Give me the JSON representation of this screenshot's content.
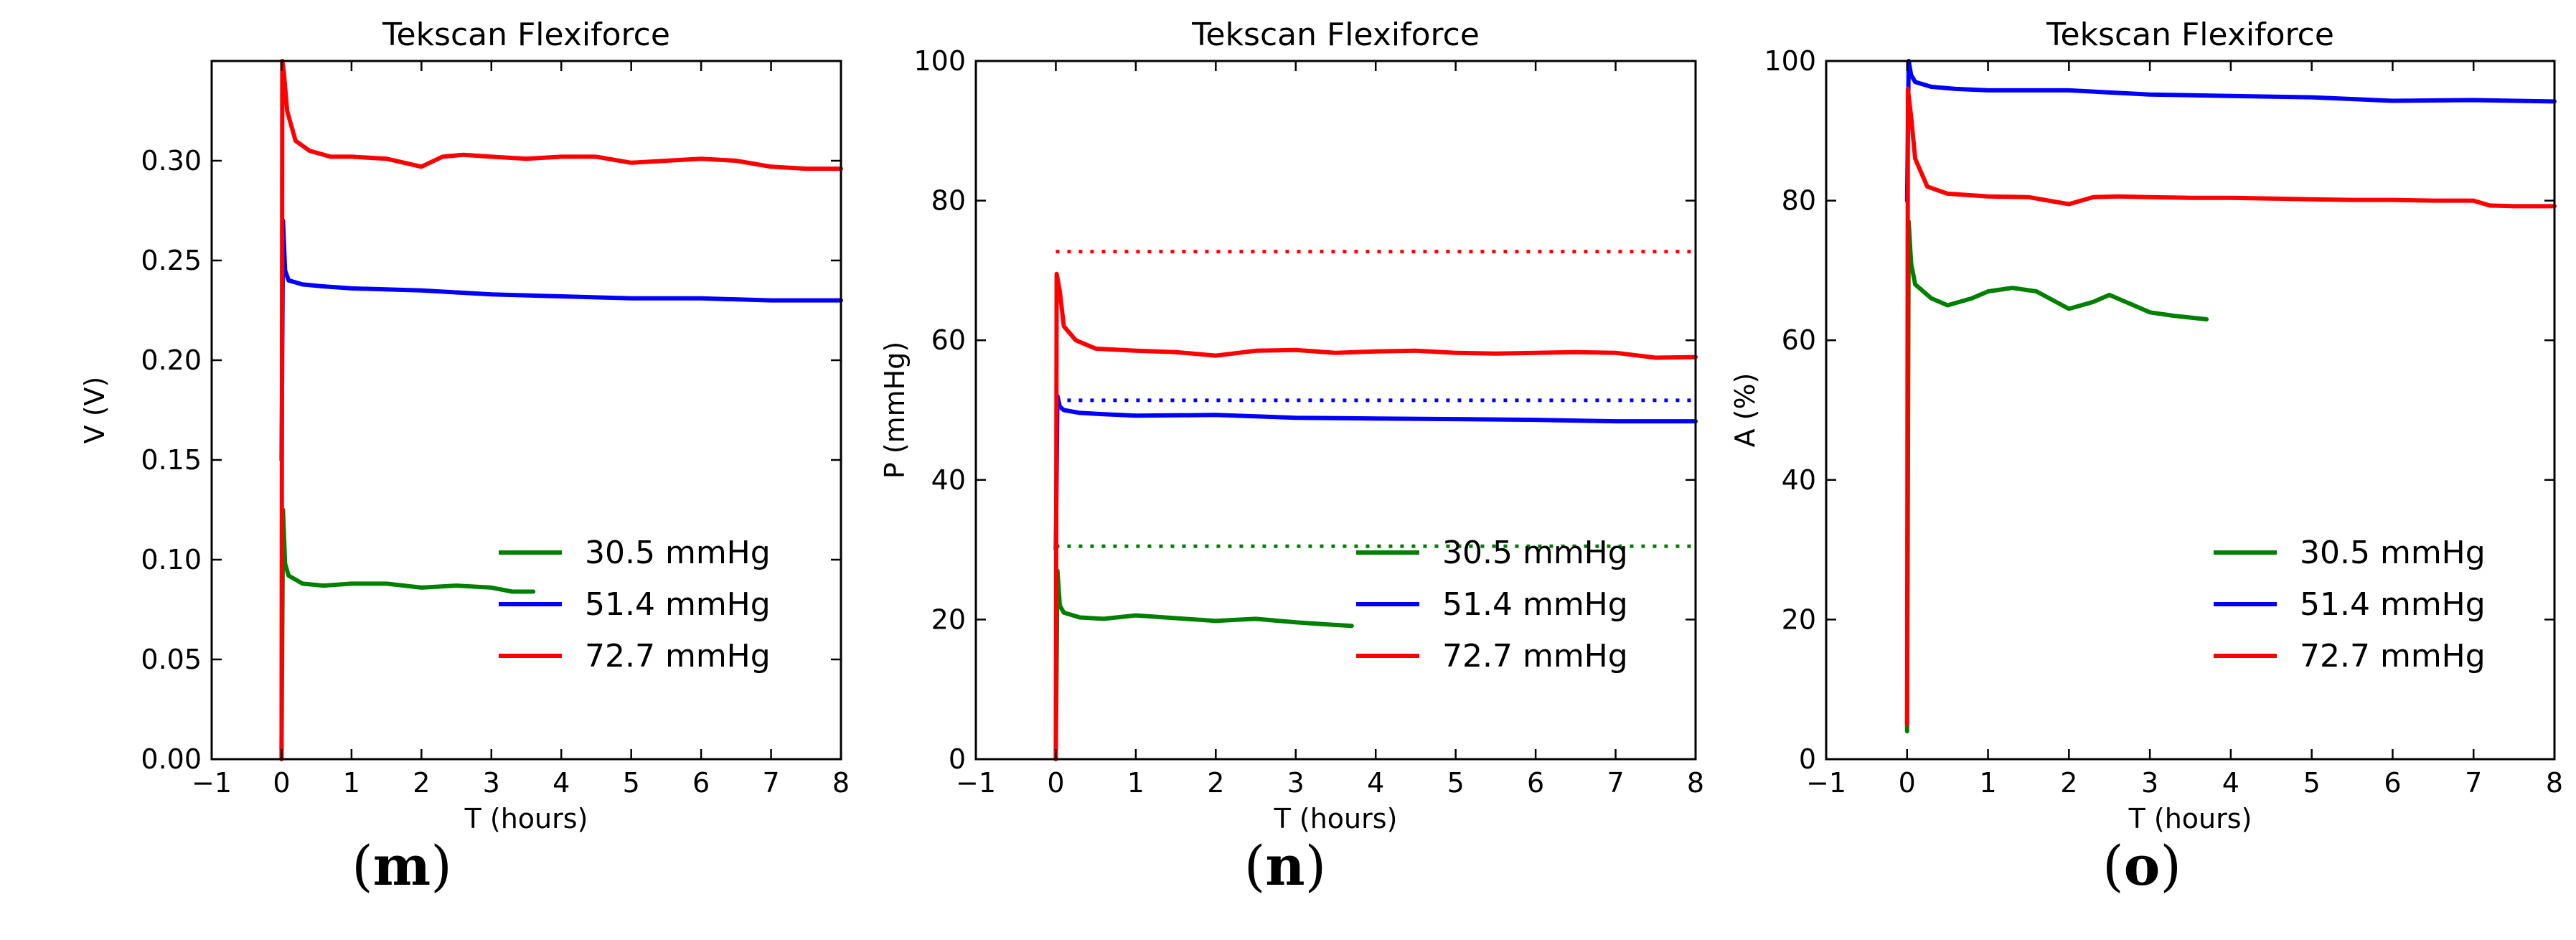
{
  "chart_data": [
    {
      "type": "line",
      "panel": "m",
      "caption": {
        "open": "(",
        "letter": "m",
        "close": ")"
      },
      "title": "Tekscan Flexiforce",
      "xlabel": "T (hours)",
      "ylabel": "V (V)",
      "xlim": [
        -1,
        8
      ],
      "ylim": [
        0,
        0.35
      ],
      "xticks": [
        -1,
        0,
        1,
        2,
        3,
        4,
        5,
        6,
        7,
        8
      ],
      "xtick_labels": [
        "−1",
        "0",
        "1",
        "2",
        "3",
        "4",
        "5",
        "6",
        "7",
        "8"
      ],
      "yticks": [
        0.0,
        0.05,
        0.1,
        0.15,
        0.2,
        0.25,
        0.3
      ],
      "ytick_labels": [
        "0.00",
        "0.05",
        "0.10",
        "0.15",
        "0.20",
        "0.25",
        "0.30"
      ],
      "legend_position": "lower-right",
      "series": [
        {
          "name": "30.5 mmHg",
          "color": "#008000",
          "x": [
            0,
            0.02,
            0.05,
            0.1,
            0.3,
            0.6,
            1.0,
            1.5,
            2.0,
            2.5,
            3.0,
            3.3,
            3.6
          ],
          "y": [
            0.005,
            0.125,
            0.098,
            0.092,
            0.088,
            0.087,
            0.088,
            0.088,
            0.086,
            0.087,
            0.086,
            0.084,
            0.084
          ]
        },
        {
          "name": "51.4 mmHg",
          "color": "#0000ff",
          "x": [
            0,
            0.02,
            0.05,
            0.1,
            0.3,
            0.6,
            1.0,
            2.0,
            3.0,
            4.0,
            5.0,
            6.0,
            7.0,
            8.0
          ],
          "y": [
            0.15,
            0.27,
            0.245,
            0.24,
            0.238,
            0.237,
            0.236,
            0.235,
            0.233,
            0.232,
            0.231,
            0.231,
            0.23,
            0.23
          ]
        },
        {
          "name": "72.7 mmHg",
          "color": "#ff0000",
          "x": [
            0,
            0.01,
            0.03,
            0.08,
            0.2,
            0.4,
            0.7,
            1.0,
            1.5,
            2.0,
            2.3,
            2.6,
            3.0,
            3.5,
            4.0,
            4.5,
            5.0,
            5.5,
            6.0,
            6.5,
            7.0,
            7.5,
            8.0
          ],
          "y": [
            0.0,
            0.35,
            0.345,
            0.325,
            0.31,
            0.305,
            0.302,
            0.302,
            0.301,
            0.297,
            0.302,
            0.303,
            0.302,
            0.301,
            0.302,
            0.302,
            0.299,
            0.3,
            0.301,
            0.3,
            0.297,
            0.296,
            0.296
          ]
        }
      ]
    },
    {
      "type": "line",
      "panel": "n",
      "caption": {
        "open": "(",
        "letter": "n",
        "close": ")"
      },
      "title": "Tekscan Flexiforce",
      "xlabel": "T (hours)",
      "ylabel": "P (mmHg)",
      "xlim": [
        -1,
        8
      ],
      "ylim": [
        0,
        100
      ],
      "xticks": [
        -1,
        0,
        1,
        2,
        3,
        4,
        5,
        6,
        7,
        8
      ],
      "xtick_labels": [
        "−1",
        "0",
        "1",
        "2",
        "3",
        "4",
        "5",
        "6",
        "7",
        "8"
      ],
      "yticks": [
        0,
        20,
        40,
        60,
        80,
        100
      ],
      "ytick_labels": [
        "0",
        "20",
        "40",
        "60",
        "80",
        "100"
      ],
      "legend_position": "lower-right",
      "reference_lines": [
        {
          "y": 30.5,
          "color": "#008000",
          "x_from": 0
        },
        {
          "y": 51.4,
          "color": "#0000ff",
          "x_from": 0
        },
        {
          "y": 72.7,
          "color": "#ff0000",
          "x_from": 0
        }
      ],
      "series": [
        {
          "name": "30.5 mmHg",
          "color": "#008000",
          "x": [
            0,
            0.02,
            0.05,
            0.1,
            0.3,
            0.6,
            1.0,
            1.5,
            2.0,
            2.5,
            3.0,
            3.4,
            3.7
          ],
          "y": [
            1,
            27,
            22,
            21,
            20.3,
            20.1,
            20.6,
            20.2,
            19.8,
            20.1,
            19.6,
            19.3,
            19.1
          ]
        },
        {
          "name": "51.4 mmHg",
          "color": "#0000ff",
          "x": [
            0,
            0.02,
            0.05,
            0.1,
            0.3,
            0.6,
            1.0,
            2.0,
            3.0,
            4.0,
            5.0,
            6.0,
            7.0,
            8.0
          ],
          "y": [
            30,
            52,
            50.5,
            50,
            49.6,
            49.4,
            49.2,
            49.3,
            48.9,
            48.8,
            48.7,
            48.6,
            48.4,
            48.4
          ]
        },
        {
          "name": "72.7 mmHg",
          "color": "#ff0000",
          "x": [
            0,
            0.01,
            0.05,
            0.1,
            0.25,
            0.5,
            1.0,
            1.5,
            2.0,
            2.5,
            3.0,
            3.5,
            4.0,
            4.5,
            5.0,
            5.5,
            6.0,
            6.5,
            7.0,
            7.5,
            8.0
          ],
          "y": [
            0,
            69.5,
            67,
            62,
            60,
            58.8,
            58.5,
            58.3,
            57.8,
            58.5,
            58.6,
            58.2,
            58.4,
            58.5,
            58.2,
            58.1,
            58.2,
            58.3,
            58.2,
            57.5,
            57.6
          ]
        }
      ]
    },
    {
      "type": "line",
      "panel": "o",
      "caption": {
        "open": "(",
        "letter": "o",
        "close": ")"
      },
      "title": "Tekscan Flexiforce",
      "xlabel": "T (hours)",
      "ylabel": "A (%)",
      "xlim": [
        -1,
        8
      ],
      "ylim": [
        0,
        100
      ],
      "xticks": [
        -1,
        0,
        1,
        2,
        3,
        4,
        5,
        6,
        7,
        8
      ],
      "xtick_labels": [
        "−1",
        "0",
        "1",
        "2",
        "3",
        "4",
        "5",
        "6",
        "7",
        "8"
      ],
      "yticks": [
        0,
        20,
        40,
        60,
        80,
        100
      ],
      "ytick_labels": [
        "0",
        "20",
        "40",
        "60",
        "80",
        "100"
      ],
      "legend_position": "lower-right",
      "series": [
        {
          "name": "30.5 mmHg",
          "color": "#008000",
          "x": [
            0,
            0.02,
            0.05,
            0.1,
            0.3,
            0.5,
            0.8,
            1.0,
            1.3,
            1.6,
            2.0,
            2.3,
            2.5,
            2.8,
            3.0,
            3.3,
            3.7
          ],
          "y": [
            4,
            77,
            71,
            68,
            66,
            65,
            66,
            67,
            67.5,
            67,
            64.5,
            65.5,
            66.5,
            65,
            64,
            63.5,
            63
          ]
        },
        {
          "name": "51.4 mmHg",
          "color": "#0000ff",
          "x": [
            0,
            0.02,
            0.05,
            0.1,
            0.3,
            0.6,
            1.0,
            2.0,
            3.0,
            4.0,
            5.0,
            6.0,
            7.0,
            8.0
          ],
          "y": [
            80,
            100,
            98,
            97,
            96.3,
            96,
            95.8,
            95.8,
            95.2,
            95,
            94.8,
            94.3,
            94.4,
            94.2
          ]
        },
        {
          "name": "72.7 mmHg",
          "color": "#ff0000",
          "x": [
            0,
            0.01,
            0.05,
            0.1,
            0.25,
            0.5,
            1.0,
            1.5,
            2.0,
            2.3,
            2.6,
            3.0,
            3.5,
            4.0,
            4.5,
            5.0,
            5.5,
            6.0,
            6.5,
            7.0,
            7.2,
            7.5,
            8.0
          ],
          "y": [
            5,
            96,
            92,
            86,
            82,
            81,
            80.6,
            80.5,
            79.5,
            80.5,
            80.6,
            80.5,
            80.4,
            80.4,
            80.3,
            80.2,
            80.1,
            80.1,
            80,
            80,
            79.3,
            79.2,
            79.2
          ]
        }
      ]
    }
  ]
}
